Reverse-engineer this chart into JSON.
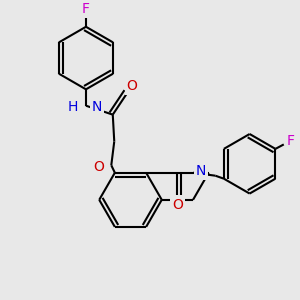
{
  "bg": "#e8e8e8",
  "FC": "#cc00cc",
  "NC": "#0000dd",
  "OC": "#cc0000",
  "CC": "#000000",
  "lw": 1.5,
  "fs": 9.5,
  "xlim": [
    0,
    10
  ],
  "ylim": [
    0,
    10
  ]
}
